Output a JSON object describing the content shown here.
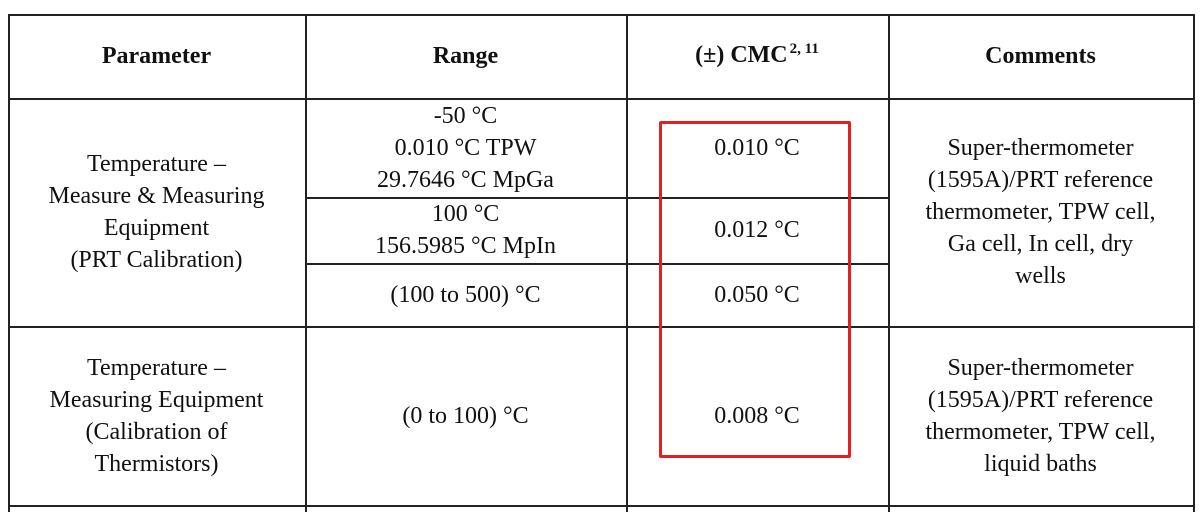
{
  "table": {
    "header": {
      "parameter": "Parameter",
      "range": "Range",
      "cmc": "(±) CMC",
      "cmc_superscript": "2, 11",
      "comments": "Comments"
    },
    "rows": [
      {
        "parameter": [
          "Temperature –",
          "Measure & Measuring",
          "Equipment",
          "(PRT Calibration)"
        ],
        "ranges": [
          {
            "range": [
              "-50 °C",
              "0.010 °C TPW",
              "29.7646 °C MpGa"
            ],
            "cmc": "0.010 °C"
          },
          {
            "range": [
              "100 °C",
              "156.5985 °C MpIn"
            ],
            "cmc": "0.012 °C"
          },
          {
            "range": [
              "(100 to 500) °C"
            ],
            "cmc": "0.050 °C"
          }
        ],
        "comments": [
          "Super-thermometer",
          "(1595A)/PRT reference",
          "thermometer, TPW cell,",
          "Ga cell, In cell, dry",
          "wells"
        ]
      },
      {
        "parameter": [
          "Temperature –",
          "Measuring Equipment",
          "(Calibration of",
          "Thermistors)"
        ],
        "ranges": [
          {
            "range": [
              "(0 to 100) °C"
            ],
            "cmc": "0.008 °C"
          }
        ],
        "comments": [
          "Super-thermometer",
          "(1595A)/PRT reference",
          "thermometer, TPW cell,",
          "liquid baths"
        ]
      }
    ]
  }
}
